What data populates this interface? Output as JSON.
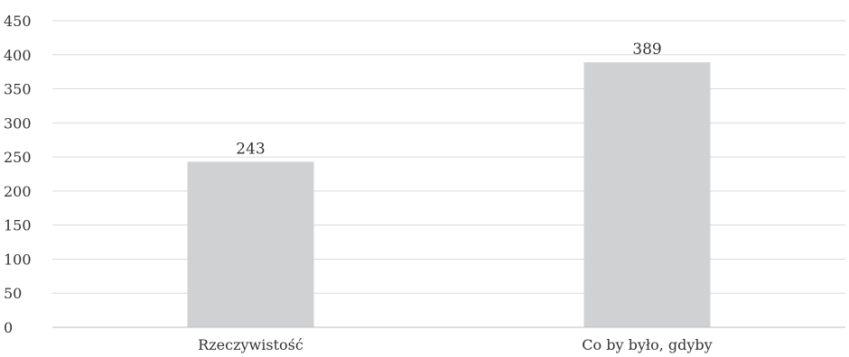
{
  "chart_data": {
    "type": "bar",
    "categories": [
      "Rzeczywistość",
      "Co by było, gdyby"
    ],
    "values": [
      243,
      389
    ],
    "data_labels": [
      "243",
      "389"
    ],
    "title": "",
    "xlabel": "",
    "ylabel": "",
    "ylim": [
      0,
      450
    ],
    "yticks": [
      0,
      50,
      100,
      150,
      200,
      250,
      300,
      350,
      400,
      450
    ],
    "ytick_labels": [
      "0",
      "50",
      "100",
      "150",
      "200",
      "250",
      "300",
      "350",
      "400",
      "450"
    ],
    "grid": "horizontal",
    "legend": "none",
    "colors": {
      "bar": "#d0d1d3",
      "grid": "#d9d9d9",
      "axis": "#bfbfbf",
      "text": "#333333"
    }
  }
}
